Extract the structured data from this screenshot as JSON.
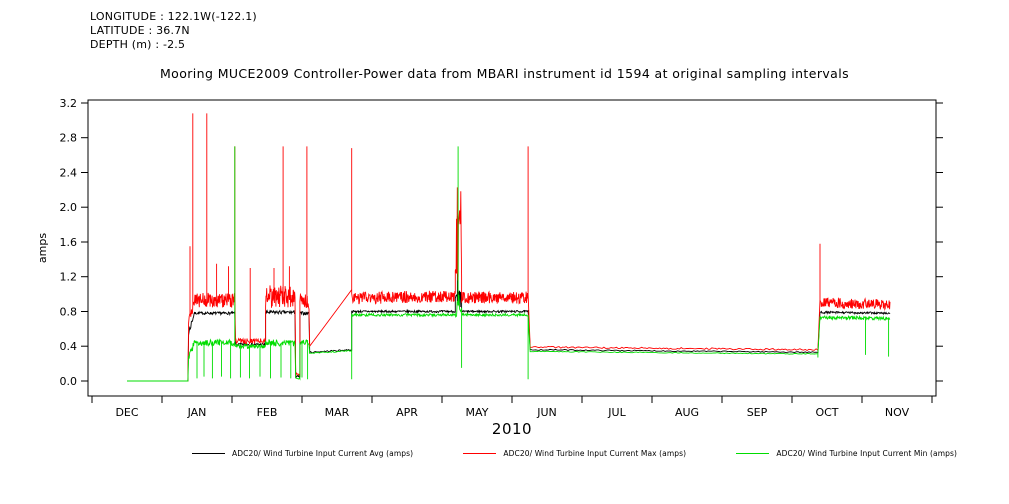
{
  "header": {
    "lines": [
      "LONGITUDE : 122.1W(-122.1)",
      "LATITUDE : 36.7N",
      "DEPTH (m) : -2.5"
    ]
  },
  "chart_data": {
    "type": "line",
    "title": "Mooring MUCE2009 Controller-Power data from MBARI instrument id 1594 at original sampling intervals",
    "ylabel": "amps",
    "xlabel": "2010",
    "x_tick_labels": [
      "DEC",
      "JAN",
      "FEB",
      "MAR",
      "APR",
      "MAY",
      "JUN",
      "JUL",
      "AUG",
      "SEP",
      "OCT",
      "NOV"
    ],
    "y_tick_values": [
      0.0,
      0.4,
      0.8,
      1.2,
      1.6,
      2.0,
      2.4,
      2.8,
      3.2
    ],
    "y_tick_labels": [
      "0.0",
      "0.4",
      "0.8",
      "1.2",
      "1.6",
      "2.0",
      "2.4",
      "2.8",
      "3.2"
    ],
    "xlim": [
      -0.557,
      11.557
    ],
    "ylim": [
      -0.173,
      3.234
    ],
    "grid": false,
    "legend_position": "bottom",
    "seed": 7,
    "series": [
      {
        "name": "ADC20/ Wind Turbine Input Current Avg (amps)",
        "color": "#000000",
        "segments": [
          [
            0.0,
            0.87,
            0.0,
            0.0,
            0.0,
            6
          ],
          [
            0.88,
            0.96,
            0.55,
            0.78,
            0.04,
            10
          ],
          [
            0.96,
            1.54,
            0.78,
            0.78,
            0.015,
            90
          ],
          [
            1.55,
            1.98,
            0.42,
            0.42,
            0.015,
            60
          ],
          [
            1.98,
            2.4,
            0.79,
            0.79,
            0.02,
            60
          ],
          [
            2.41,
            2.47,
            0.05,
            0.05,
            0.015,
            8
          ],
          [
            2.47,
            2.6,
            0.78,
            0.78,
            0.02,
            18
          ],
          [
            2.61,
            3.21,
            0.33,
            0.36,
            0.008,
            40
          ],
          [
            3.21,
            4.69,
            0.8,
            0.8,
            0.012,
            210
          ],
          [
            4.69,
            4.78,
            0.9,
            0.9,
            0.15,
            14
          ],
          [
            4.78,
            5.73,
            0.8,
            0.8,
            0.012,
            135
          ],
          [
            5.76,
            9.87,
            0.36,
            0.33,
            0.006,
            160
          ],
          [
            9.9,
            10.9,
            0.79,
            0.78,
            0.012,
            145
          ]
        ],
        "events": [
          [
            4.72,
            1.9
          ]
        ]
      },
      {
        "name": "ADC20/ Wind Turbine Input Current Max (amps)",
        "color": "#ff0000",
        "segments": [
          [
            0.0,
            0.87,
            0.0,
            0.0,
            0.0,
            6
          ],
          [
            0.88,
            0.96,
            0.7,
            0.88,
            0.06,
            10
          ],
          [
            0.96,
            1.54,
            0.93,
            0.93,
            0.085,
            120
          ],
          [
            1.55,
            1.98,
            0.46,
            0.46,
            0.03,
            60
          ],
          [
            1.98,
            2.4,
            0.97,
            0.97,
            0.13,
            80
          ],
          [
            2.41,
            2.47,
            0.08,
            0.08,
            0.02,
            8
          ],
          [
            2.47,
            2.6,
            0.92,
            0.92,
            0.1,
            20
          ],
          [
            2.61,
            3.21,
            0.4,
            1.05,
            0.0,
            4
          ],
          [
            3.21,
            4.69,
            0.95,
            0.98,
            0.07,
            260
          ],
          [
            4.69,
            4.78,
            1.7,
            1.7,
            0.6,
            16
          ],
          [
            4.78,
            5.73,
            0.96,
            0.96,
            0.07,
            170
          ],
          [
            5.76,
            9.87,
            0.39,
            0.36,
            0.01,
            160
          ],
          [
            9.9,
            10.9,
            0.9,
            0.88,
            0.06,
            160
          ]
        ],
        "events": [
          [
            0.9,
            1.55
          ],
          [
            0.94,
            3.08
          ],
          [
            1.14,
            3.08
          ],
          [
            1.28,
            1.35
          ],
          [
            1.45,
            1.32
          ],
          [
            1.54,
            2.7
          ],
          [
            1.76,
            1.3
          ],
          [
            2.1,
            1.3
          ],
          [
            2.23,
            2.7
          ],
          [
            2.32,
            1.32
          ],
          [
            2.57,
            2.7
          ],
          [
            3.21,
            2.68
          ],
          [
            5.73,
            2.7
          ],
          [
            9.9,
            1.58
          ]
        ]
      },
      {
        "name": "ADC20/ Wind Turbine Input Current Min (amps)",
        "color": "#00dd00",
        "segments": [
          [
            0.0,
            0.87,
            0.0,
            0.0,
            0.0,
            6
          ],
          [
            0.88,
            0.96,
            0.28,
            0.44,
            0.05,
            10
          ],
          [
            0.96,
            1.54,
            0.44,
            0.44,
            0.035,
            90
          ],
          [
            1.55,
            1.98,
            0.4,
            0.4,
            0.025,
            60
          ],
          [
            1.98,
            2.4,
            0.44,
            0.44,
            0.04,
            60
          ],
          [
            2.41,
            2.47,
            0.03,
            0.03,
            0.01,
            8
          ],
          [
            2.47,
            2.6,
            0.44,
            0.44,
            0.035,
            18
          ],
          [
            2.61,
            3.21,
            0.32,
            0.35,
            0.008,
            40
          ],
          [
            3.21,
            4.69,
            0.76,
            0.76,
            0.015,
            210
          ],
          [
            4.69,
            4.78,
            0.85,
            0.85,
            0.15,
            14
          ],
          [
            4.78,
            5.73,
            0.76,
            0.76,
            0.015,
            135
          ],
          [
            5.76,
            9.87,
            0.34,
            0.31,
            0.005,
            160
          ],
          [
            9.9,
            10.9,
            0.73,
            0.72,
            0.02,
            145
          ]
        ],
        "events": [
          [
            1.0,
            0.03
          ],
          [
            1.1,
            0.05
          ],
          [
            1.22,
            0.03
          ],
          [
            1.35,
            0.05
          ],
          [
            1.48,
            0.03
          ],
          [
            1.54,
            2.7
          ],
          [
            1.62,
            0.04
          ],
          [
            1.75,
            0.03
          ],
          [
            1.9,
            0.05
          ],
          [
            2.05,
            0.03
          ],
          [
            2.2,
            0.04
          ],
          [
            2.34,
            0.03
          ],
          [
            2.5,
            0.04
          ],
          [
            2.58,
            0.02
          ],
          [
            3.21,
            0.02
          ],
          [
            4.73,
            2.7
          ],
          [
            4.78,
            0.15
          ],
          [
            5.73,
            0.02
          ],
          [
            9.87,
            0.27
          ],
          [
            10.55,
            0.3
          ],
          [
            10.88,
            0.28
          ]
        ]
      }
    ]
  }
}
